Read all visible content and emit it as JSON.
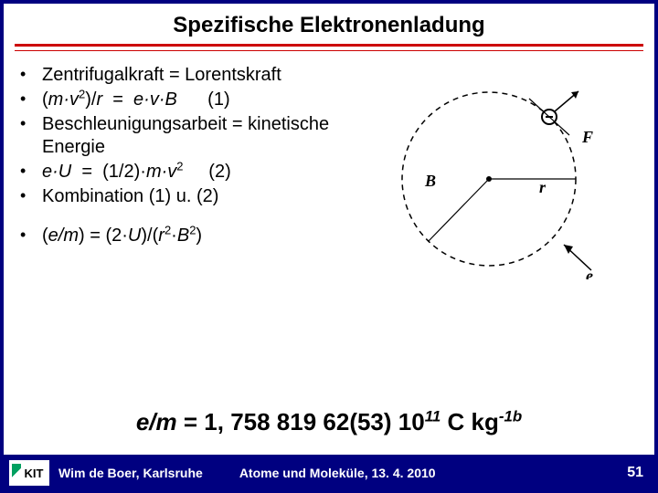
{
  "title": "Spezifische Elektronenladung",
  "bullets_a": [
    "Zentrifugalkraft = Lorentskraft",
    "(<i>m·v</i><sup>2</sup>)/<i>r</i>&nbsp;&nbsp;=&nbsp;&nbsp;<i>e·v·B</i>&nbsp;&nbsp;&nbsp;&nbsp;&nbsp;&nbsp;(1)",
    "Beschleunigungsarbeit = kinetische Energie",
    "<i>e·U</i>&nbsp;&nbsp;=&nbsp;&nbsp;(1/2)·<i>m·v</i><sup>2</sup>&nbsp;&nbsp;&nbsp;&nbsp;&nbsp;(2)",
    "Kombination (1) u. (2)"
  ],
  "bullets_b": [
    "(<i>e/m</i>) = (2·<i>U</i>)/(<i>r</i><sup>2</sup>·<i>B</i><sup>2</sup>)"
  ],
  "result_html": "<i>e/m</i> <span class='normal'>= 1, 758 819 62(53) 10</span><sup>11</sup> <span class='normal'>C kg</span><sup>-1b</sup>",
  "diagram": {
    "B_label": "B",
    "F_label": "F",
    "r_label": "r",
    "e_label": "e"
  },
  "footer": {
    "author": "Wim de Boer, Karlsruhe",
    "lecture": "Atome und Moleküle,  13. 4. 2010",
    "page": "51",
    "logo_text": "KIT"
  }
}
